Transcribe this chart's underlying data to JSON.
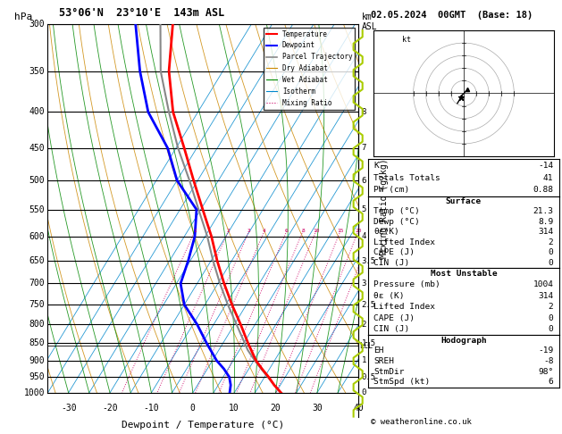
{
  "title_left": "53°06'N  23°10'E  143m ASL",
  "title_right": "02.05.2024  00GMT  (Base: 18)",
  "xlabel": "Dewpoint / Temperature (°C)",
  "pressure_levels": [
    300,
    350,
    400,
    450,
    500,
    550,
    600,
    650,
    700,
    750,
    800,
    850,
    900,
    950,
    1000
  ],
  "xlim": [
    -35,
    40
  ],
  "temp_color": "#ff0000",
  "dewp_color": "#0000ff",
  "parcel_color": "#888888",
  "dry_adiabat_color": "#cc8800",
  "wet_adiabat_color": "#008800",
  "isotherm_color": "#0088cc",
  "mixing_ratio_color": "#cc0066",
  "background_color": "#ffffff",
  "info_panel": {
    "K": "-14",
    "Totals Totals": "41",
    "PW (cm)": "0.88",
    "Surface_title": "Surface",
    "Temp_C": "21.3",
    "Dewp_C": "8.9",
    "theta_e_K": "314",
    "Lifted_Index": "2",
    "CAPE_J": "0",
    "CIN_J": "0",
    "MU_title": "Most Unstable",
    "MU_Pressure_mb": "1004",
    "MU_theta_e_K": "314",
    "MU_Lifted_Index": "2",
    "MU_CAPE_J": "0",
    "MU_CIN_J": "0",
    "Hodo_title": "Hodograph",
    "EH": "-19",
    "SREH": "-8",
    "StmDir": "98°",
    "StmSpd_kt": "6"
  },
  "temp_profile_p": [
    1000,
    975,
    950,
    925,
    900,
    850,
    800,
    750,
    700,
    650,
    600,
    550,
    500,
    450,
    400,
    350,
    300
  ],
  "temp_profile_T": [
    21.3,
    18.5,
    16.0,
    13.2,
    10.5,
    6.0,
    1.5,
    -3.5,
    -8.5,
    -13.5,
    -18.5,
    -24.5,
    -31.0,
    -38.0,
    -46.0,
    -53.0,
    -59.0
  ],
  "dewp_profile_p": [
    1000,
    975,
    950,
    925,
    900,
    850,
    800,
    750,
    700,
    650,
    600,
    550,
    500,
    450,
    400,
    350,
    300
  ],
  "dewp_profile_T": [
    8.9,
    8.0,
    6.5,
    4.0,
    1.0,
    -4.0,
    -9.0,
    -15.0,
    -19.0,
    -20.5,
    -22.5,
    -26.0,
    -35.0,
    -42.0,
    -52.0,
    -60.0,
    -68.0
  ],
  "parcel_profile_p": [
    1000,
    975,
    950,
    925,
    900,
    870,
    850,
    800,
    750,
    700,
    650,
    600,
    550,
    500,
    450,
    400,
    350,
    300
  ],
  "parcel_profile_T": [
    21.3,
    18.5,
    15.8,
    13.0,
    10.2,
    7.0,
    5.2,
    0.5,
    -4.5,
    -9.5,
    -14.5,
    -19.5,
    -25.5,
    -32.0,
    -39.5,
    -47.0,
    -55.0,
    -62.0
  ],
  "lcl_pressure": 858,
  "mixing_ratio_lines": [
    1,
    2,
    3,
    4,
    6,
    8,
    10,
    15,
    20,
    25
  ],
  "km_ticks": {
    "1000": "0",
    "950": "0.5",
    "900": "1",
    "850": "1.5",
    "800": "2",
    "750": "2.5",
    "700": "3",
    "650": "3.5",
    "600": "4",
    "550": "5",
    "500": "6",
    "450": "7",
    "400": "8"
  },
  "mix_ratio_right_ticks": {
    "550": "5",
    "600": "4",
    "650": "3.5",
    "700": "3",
    "750": "2.5",
    "800": "2",
    "850": "1.5",
    "900": "1",
    "950": "0.5",
    "1000": "0"
  }
}
